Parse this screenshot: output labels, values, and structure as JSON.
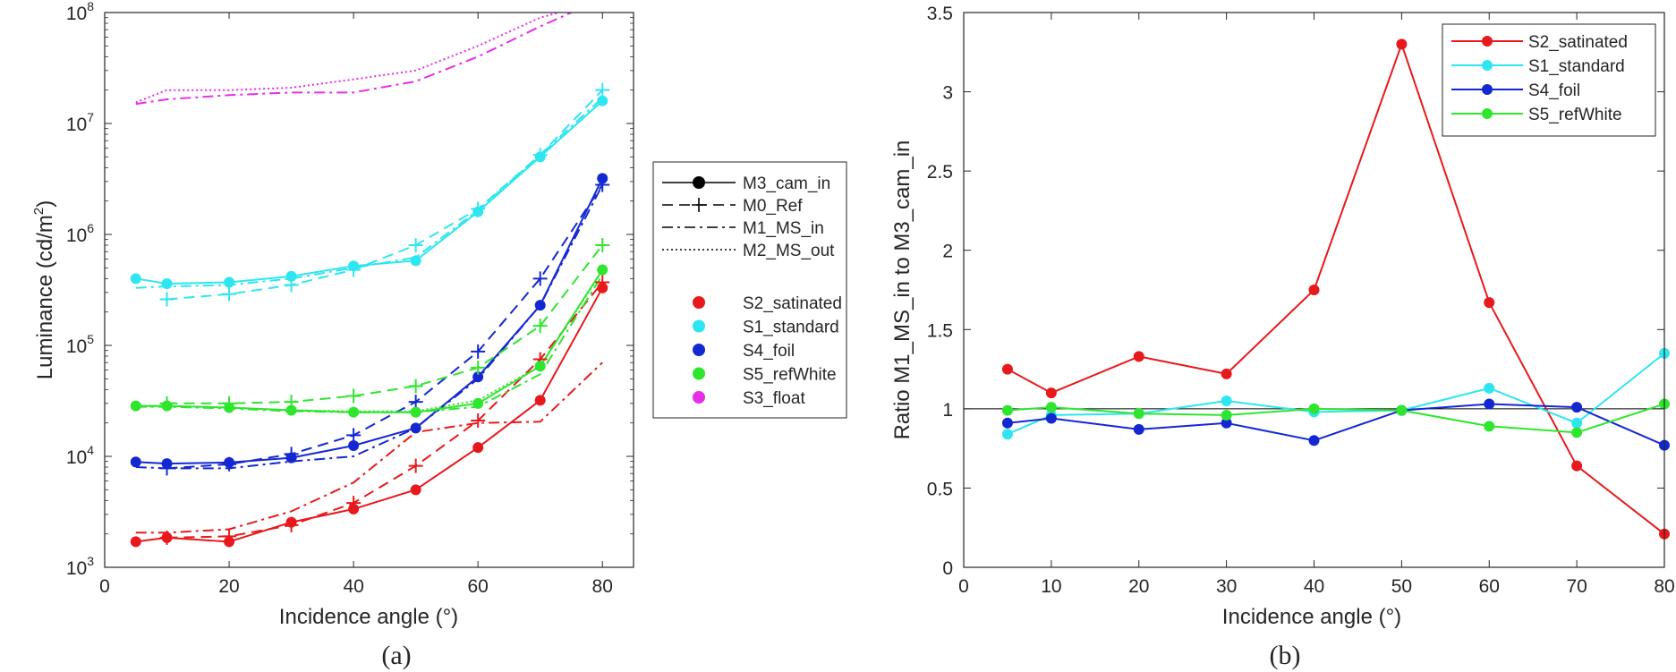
{
  "chart_data": [
    {
      "id": "a",
      "type": "line",
      "caption": "(a)",
      "xlabel": "Incidence angle (°)",
      "ylabel_main": "Luminance (cd/m",
      "ylabel_sup": "2",
      "ylabel_tail": ")",
      "xlim": [
        0,
        85
      ],
      "ylim": [
        1000,
        100000000
      ],
      "yscale": "log",
      "xticks": [
        0,
        20,
        40,
        60,
        80
      ],
      "yticks": [
        {
          "value": 1000,
          "base": "10",
          "exp": "3"
        },
        {
          "value": 10000,
          "base": "10",
          "exp": "4"
        },
        {
          "value": 100000,
          "base": "10",
          "exp": "5"
        },
        {
          "value": 1000000,
          "base": "10",
          "exp": "6"
        },
        {
          "value": 10000000,
          "base": "10",
          "exp": "7"
        },
        {
          "value": 100000000,
          "base": "10",
          "exp": "8"
        }
      ],
      "legend_methods": [
        {
          "name": "M3_cam_in",
          "style": "solid",
          "marker": "dot"
        },
        {
          "name": "M0_Ref",
          "style": "dashed",
          "marker": "plus"
        },
        {
          "name": "M1_MS_in",
          "style": "dashdot",
          "marker": "none"
        },
        {
          "name": "M2_MS_out",
          "style": "dotted",
          "marker": "none"
        }
      ],
      "legend_samples": [
        {
          "name": "S2_satinated",
          "color": "#e8191c"
        },
        {
          "name": "S1_standard",
          "color": "#2ee6f0"
        },
        {
          "name": "S4_foil",
          "color": "#1428d2"
        },
        {
          "name": "S5_refWhite",
          "color": "#2ee62e"
        },
        {
          "name": "S3_float",
          "color": "#e62ee6"
        }
      ],
      "series": [
        {
          "sample": "S2_satinated",
          "method": "M3_cam_in",
          "x": [
            5,
            10,
            20,
            30,
            40,
            50,
            60,
            70,
            80
          ],
          "values": [
            1700,
            1850,
            1700,
            2550,
            3350,
            5000,
            12000,
            32000,
            330000
          ]
        },
        {
          "sample": "S2_satinated",
          "method": "M0_Ref",
          "x": [
            10,
            20,
            30,
            40,
            50,
            60,
            70,
            80
          ],
          "values": [
            1850,
            1900,
            2400,
            3800,
            8200,
            21000,
            75000,
            370000
          ]
        },
        {
          "sample": "S2_satinated",
          "method": "M1_MS_in",
          "x": [
            5,
            10,
            20,
            30,
            40,
            50,
            60,
            70,
            80
          ],
          "values": [
            2050,
            2050,
            2200,
            3200,
            5800,
            16500,
            20000,
            20500,
            70000
          ]
        },
        {
          "sample": "S1_standard",
          "method": "M3_cam_in",
          "x": [
            5,
            10,
            20,
            30,
            40,
            50,
            60,
            70,
            80
          ],
          "values": [
            400000,
            360000,
            370000,
            420000,
            520000,
            580000,
            1600000,
            5000000,
            16000000
          ]
        },
        {
          "sample": "S1_standard",
          "method": "M0_Ref",
          "x": [
            10,
            20,
            30,
            40,
            50,
            60,
            70,
            80
          ],
          "values": [
            260000,
            290000,
            350000,
            480000,
            800000,
            1700000,
            5200000,
            20000000
          ]
        },
        {
          "sample": "S1_standard",
          "method": "M1_MS_in",
          "x": [
            5,
            10,
            20,
            30,
            40,
            50,
            60,
            70,
            80
          ],
          "values": [
            330000,
            340000,
            350000,
            400000,
            500000,
            620000,
            1650000,
            5200000,
            17000000
          ]
        },
        {
          "sample": "S4_foil",
          "method": "M3_cam_in",
          "x": [
            5,
            10,
            20,
            30,
            40,
            50,
            60,
            70,
            80
          ],
          "values": [
            8900,
            8600,
            8800,
            9700,
            12500,
            18000,
            52000,
            230000,
            3200000
          ]
        },
        {
          "sample": "S4_foil",
          "method": "M0_Ref",
          "x": [
            10,
            20,
            30,
            40,
            50,
            60,
            70,
            80
          ],
          "values": [
            7800,
            8500,
            10500,
            15500,
            31000,
            88000,
            400000,
            2800000
          ]
        },
        {
          "sample": "S4_foil",
          "method": "M1_MS_in",
          "x": [
            5,
            10,
            20,
            30,
            40,
            50,
            60,
            70,
            80
          ],
          "values": [
            8000,
            7800,
            7800,
            9000,
            10000,
            18000,
            50000,
            230000,
            2800000
          ]
        },
        {
          "sample": "S5_refWhite",
          "method": "M3_cam_in",
          "x": [
            5,
            10,
            20,
            30,
            40,
            50,
            60,
            70,
            80
          ],
          "values": [
            28500,
            28500,
            27500,
            26000,
            25000,
            25000,
            30000,
            65000,
            480000
          ]
        },
        {
          "sample": "S5_refWhite",
          "method": "M0_Ref",
          "x": [
            10,
            20,
            30,
            40,
            50,
            60,
            70,
            80
          ],
          "values": [
            30000,
            30000,
            31000,
            35000,
            43000,
            63000,
            150000,
            800000
          ]
        },
        {
          "sample": "S5_refWhite",
          "method": "M1_MS_in",
          "x": [
            5,
            10,
            20,
            30,
            40,
            50,
            60,
            70,
            80
          ],
          "values": [
            28000,
            28000,
            27000,
            25500,
            25000,
            25000,
            28000,
            55000,
            430000
          ]
        },
        {
          "sample": "S5_refWhite",
          "method": "M2_MS_out",
          "x": [
            5,
            10,
            20,
            30,
            40,
            50,
            60,
            70,
            80
          ],
          "values": [
            28000,
            28500,
            27500,
            26000,
            25500,
            25500,
            32000,
            65000,
            470000
          ]
        },
        {
          "sample": "S3_float",
          "method": "M1_MS_in",
          "x": [
            5,
            10,
            20,
            30,
            40,
            50,
            60,
            70,
            75
          ],
          "values": [
            15000000,
            16500000,
            18000000,
            19000000,
            19000000,
            24000000,
            40000000,
            75000000,
            100000000
          ]
        },
        {
          "sample": "S3_float",
          "method": "M2_MS_out",
          "x": [
            5,
            10,
            20,
            30,
            40,
            50,
            60,
            70,
            73
          ],
          "values": [
            15500000,
            20000000,
            20000000,
            21000000,
            25000000,
            30000000,
            50000000,
            90000000,
            100000000
          ]
        }
      ]
    },
    {
      "id": "b",
      "type": "line",
      "caption": "(b)",
      "xlabel": "Incidence angle (°)",
      "ylabel": "Ratio M1_MS_in to M3_cam_in",
      "xlim": [
        0,
        80
      ],
      "ylim": [
        0,
        3.5
      ],
      "xticks": [
        0,
        10,
        20,
        30,
        40,
        50,
        60,
        70,
        80
      ],
      "yticks": [
        0,
        0.5,
        1,
        1.5,
        2,
        2.5,
        3,
        3.5
      ],
      "ytick_labels": [
        "0",
        "0.5",
        "1",
        "1.5",
        "2",
        "2.5",
        "3",
        "3.5"
      ],
      "reference_line": 1,
      "x": [
        5,
        10,
        20,
        30,
        40,
        50,
        60,
        70,
        80
      ],
      "series": [
        {
          "name": "S2_satinated",
          "color": "#e8191c",
          "values": [
            1.25,
            1.1,
            1.33,
            1.22,
            1.75,
            3.3,
            1.67,
            0.64,
            0.21
          ]
        },
        {
          "name": "S1_standard",
          "color": "#2ee6f0",
          "values": [
            0.84,
            0.96,
            0.97,
            1.05,
            0.98,
            0.99,
            1.13,
            0.91,
            1.35
          ]
        },
        {
          "name": "S4_foil",
          "color": "#1428d2",
          "values": [
            0.91,
            0.94,
            0.87,
            0.91,
            0.8,
            0.99,
            1.03,
            1.01,
            0.77
          ]
        },
        {
          "name": "S5_refWhite",
          "color": "#2ee62e",
          "values": [
            0.99,
            1.01,
            0.97,
            0.96,
            1.0,
            0.99,
            0.89,
            0.85,
            1.03
          ]
        }
      ]
    }
  ]
}
